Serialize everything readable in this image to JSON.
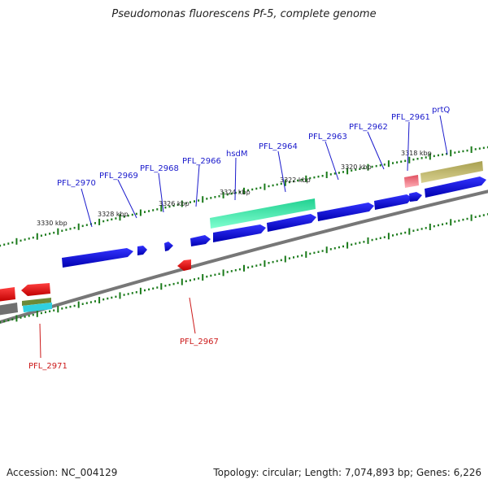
{
  "title": "Pseudomonas fluorescens Pf-5, complete genome",
  "footer": {
    "accession": "Accession: NC_004129",
    "summary": "Topology: circular; Length: 7,074,893 bp; Genes: 6,226"
  },
  "ruler_labels": [
    "3330 kbp",
    "3328 kbp",
    "3326 kbp",
    "3324 kbp",
    "3322 kbp",
    "3320 kbp",
    "3318 kbp"
  ],
  "gene_labels_top": [
    "PFL_2970",
    "PFL_2969",
    "PFL_2968",
    "PFL_2966",
    "hsdM",
    "PFL_2964",
    "PFL_2963",
    "PFL_2962",
    "PFL_2961",
    "prtQ"
  ],
  "gene_labels_bottom": [
    "PFL_2971",
    "PFL_2967"
  ],
  "colors": {
    "forward_gene": "#1010dd",
    "reverse_gene": "#dd1010",
    "backbone": "#777777",
    "tick": "#1a7a1a",
    "label_blue": "#1a1acc",
    "label_red": "#cc1a1a"
  }
}
